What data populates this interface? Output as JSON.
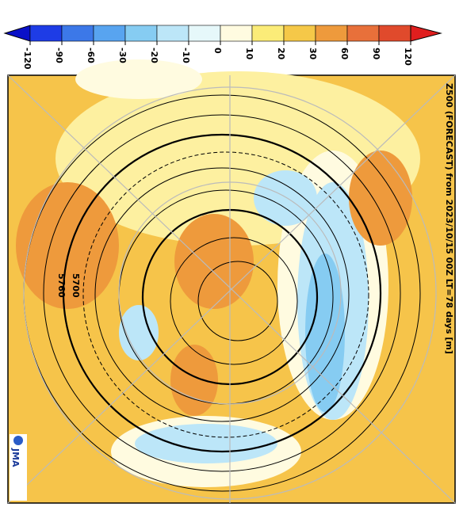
{
  "map": {
    "title": "Z500 (FORECAST)  from  2023/10/15 00Z LT=78 days  [m]",
    "logo": "JMA",
    "contour_labels": [
      "5700",
      "5760"
    ],
    "colorbar": {
      "ticks": [
        -120,
        -90,
        -60,
        -30,
        -20,
        -10,
        0,
        10,
        20,
        30,
        60,
        90,
        120
      ],
      "colors": [
        "#0a10c8",
        "#1e3ce6",
        "#3c78e8",
        "#58a4f0",
        "#86ccf2",
        "#bce6f8",
        "#e6f8fa",
        "#fffbe0",
        "#fbec78",
        "#f5c848",
        "#ee9a3c",
        "#e8703a",
        "#e04a2c",
        "#e01e1e"
      ]
    }
  }
}
